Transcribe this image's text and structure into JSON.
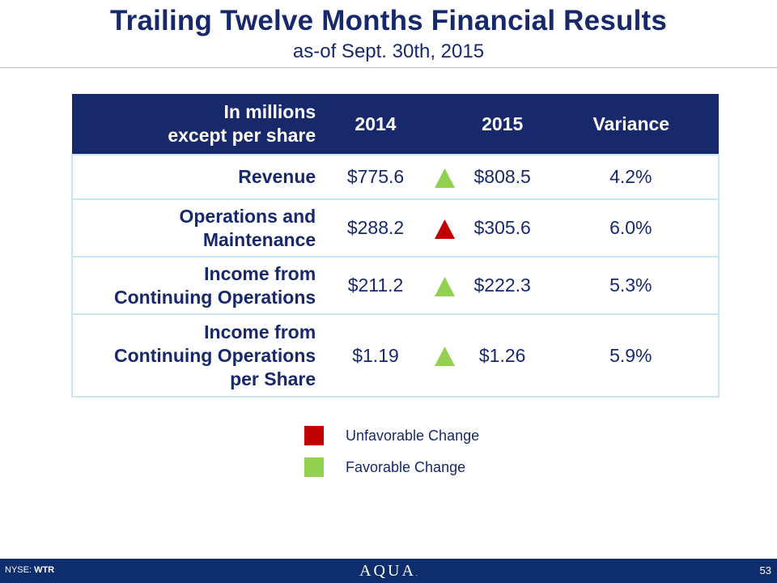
{
  "header": {
    "title": "Trailing Twelve Months Financial Results",
    "subtitle": "as-of Sept. 30th, 2015"
  },
  "table": {
    "columns": {
      "label_line1": "In millions",
      "label_line2": "except per share",
      "y2014": "2014",
      "y2015": "2015",
      "variance": "Variance"
    },
    "rows": [
      {
        "label_line1": "Revenue",
        "v2014": "$775.6",
        "v2015": "$808.5",
        "variance": "4.2%",
        "change": "favorable"
      },
      {
        "label_line1": "Operations and",
        "label_line2": "Maintenance",
        "v2014": "$288.2",
        "v2015": "$305.6",
        "variance": "6.0%",
        "change": "unfavorable"
      },
      {
        "label_line1": "Income from",
        "label_line2": "Continuing Operations",
        "v2014": "$211.2",
        "v2015": "$222.3",
        "variance": "5.3%",
        "change": "favorable"
      },
      {
        "label_line1": "Income from",
        "label_line2": "Continuing Operations",
        "label_line3": "per Share",
        "v2014": "$1.19",
        "v2015": "$1.26",
        "variance": "5.9%",
        "change": "favorable"
      }
    ]
  },
  "legend": {
    "unfavorable": "Unfavorable Change",
    "favorable": "Favorable Change"
  },
  "colors": {
    "navy": "#17296b",
    "favorable": "#92d050",
    "unfavorable": "#c00000"
  },
  "footer": {
    "exchange_prefix": "NYSE:",
    "ticker": "WTR",
    "logo": "AQUA",
    "page_number": "53"
  }
}
